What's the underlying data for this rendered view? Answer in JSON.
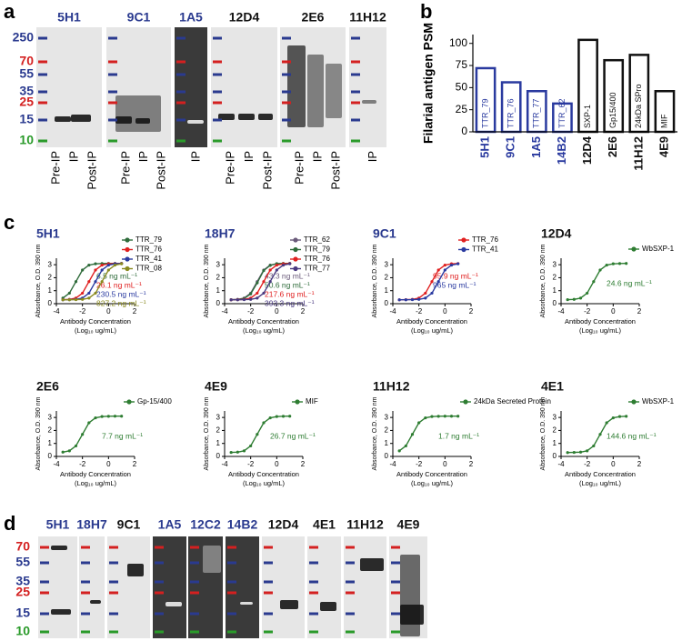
{
  "panel_labels": [
    "a",
    "b",
    "c",
    "d"
  ],
  "blot_a": {
    "markers": [
      {
        "label": "250",
        "color": "#2a3a8f"
      },
      {
        "label": "70",
        "color": "#d42020"
      },
      {
        "label": "55",
        "color": "#2a3a8f"
      },
      {
        "label": "35",
        "color": "#2a3a8f"
      },
      {
        "label": "25",
        "color": "#d42020"
      },
      {
        "label": "15",
        "color": "#2a3a8f"
      },
      {
        "label": "10",
        "color": "#2a9a2a"
      }
    ],
    "blots": [
      {
        "name": "5H1",
        "color": "#2a3a8f",
        "lanes": [
          "Pre-IP",
          "IP",
          "Post-IP"
        ]
      },
      {
        "name": "9C1",
        "color": "#2a3a8f",
        "lanes": [
          "Pre-IP",
          "IP",
          "Post-IP"
        ]
      },
      {
        "name": "1A5",
        "color": "#2a3a8f",
        "lanes": [
          "IP"
        ]
      },
      {
        "name": "12D4",
        "color": "#111111",
        "lanes": [
          "Pre-IP",
          "IP",
          "Post-IP"
        ]
      },
      {
        "name": "2E6",
        "color": "#111111",
        "lanes": [
          "Pre-IP",
          "IP",
          "Post-IP"
        ]
      },
      {
        "name": "11H12",
        "color": "#111111",
        "lanes": [
          "IP"
        ]
      }
    ]
  },
  "chart_data": [
    {
      "type": "bar",
      "y_label": "Filarial antigen PSM",
      "categories": [
        "5H1",
        "9C1",
        "1A5",
        "14B2",
        "12D4",
        "2E6",
        "11H12",
        "4E9"
      ],
      "values": [
        72,
        56,
        46,
        32,
        104,
        81,
        87,
        46
      ],
      "colors": [
        "#2a3a9f",
        "#2a3a9f",
        "#2a3a9f",
        "#2a3a9f",
        "#111111",
        "#111111",
        "#111111",
        "#111111"
      ],
      "bar_labels": [
        "TTR_79",
        "TTR_76",
        "TTR_77",
        "TTR_62",
        "SXP-1",
        "Gp15/400",
        "24kDa SPro",
        "MIF"
      ],
      "ylim": [
        0,
        110
      ],
      "yticks": [
        0,
        25,
        50,
        75,
        100
      ]
    },
    {
      "type": "line",
      "title": "5H1",
      "title_color": "#2a3a8f",
      "y_label": "Absorbance, O.D. 390 nm",
      "x_label": [
        "Antibody Concentration",
        "(Log₁₀ ug/mL)"
      ],
      "x": [
        -3.5,
        -3,
        -2.5,
        -2,
        -1.5,
        -1,
        -0.5,
        0,
        0.5,
        1
      ],
      "xlim": [
        -4,
        2
      ],
      "ylim": [
        0,
        3.5
      ],
      "xticks": [
        -4,
        -2,
        0,
        2
      ],
      "yticks": [
        0,
        1,
        2,
        3
      ],
      "series": [
        {
          "name": "TTR_79",
          "color": "#2e6b3a",
          "annotation": "6.5 ng mL⁻¹",
          "values": [
            0.43,
            0.81,
            1.7,
            2.59,
            2.97,
            3.07,
            3.09,
            3.1,
            3.1,
            3.1
          ]
        },
        {
          "name": "TTR_76",
          "color": "#e02020",
          "annotation": "26.1 ng mL⁻¹",
          "values": [
            0.31,
            0.33,
            0.43,
            0.81,
            1.7,
            2.59,
            2.97,
            3.07,
            3.09,
            3.1
          ]
        },
        {
          "name": "TTR_41",
          "color": "#2a3aa0",
          "annotation": "230.5 ng mL⁻¹",
          "values": [
            0.3,
            0.31,
            0.33,
            0.43,
            0.81,
            1.7,
            2.59,
            2.97,
            3.07,
            3.09
          ]
        },
        {
          "name": "TTR_08",
          "color": "#8a8a20",
          "annotation": "827.2 ng mL⁻¹",
          "values": [
            0.3,
            0.3,
            0.31,
            0.33,
            0.43,
            0.81,
            1.7,
            2.59,
            2.97,
            3.07
          ]
        }
      ]
    },
    {
      "type": "line",
      "title": "18H7",
      "title_color": "#2a3a8f",
      "y_label": "Absorbance, O.D. 390 nm",
      "x_label": [
        "Antibody Concentration",
        "(Log₁₀ ug/mL)"
      ],
      "x": [
        -3.5,
        -3,
        -2.5,
        -2,
        -1.5,
        -1,
        -0.5,
        0,
        0.5,
        1
      ],
      "xlim": [
        -4,
        2
      ],
      "ylim": [
        0,
        3.5
      ],
      "xticks": [
        -4,
        -2,
        0,
        2
      ],
      "yticks": [
        0,
        1,
        2,
        3
      ],
      "series": [
        {
          "name": "TTR_62",
          "color": "#6a5a7a",
          "annotation": "43.3 ng mL⁻¹",
          "values": [
            0.31,
            0.33,
            0.43,
            0.81,
            1.7,
            2.59,
            2.97,
            3.07,
            3.09,
            3.1
          ]
        },
        {
          "name": "TTR_79",
          "color": "#2e6b3a",
          "annotation": "50.6 ng mL⁻¹",
          "values": [
            0.3,
            0.32,
            0.4,
            0.75,
            1.6,
            2.55,
            2.95,
            3.08,
            3.1,
            3.1
          ]
        },
        {
          "name": "TTR_76",
          "color": "#e02020",
          "annotation": "217.6 ng mL⁻¹",
          "values": [
            0.3,
            0.31,
            0.33,
            0.43,
            0.81,
            1.7,
            2.59,
            2.97,
            3.07,
            3.09
          ]
        },
        {
          "name": "TTR_77",
          "color": "#4a3a80",
          "annotation": "393.3 ng mL⁻¹",
          "values": [
            0.3,
            0.3,
            0.31,
            0.33,
            0.43,
            0.81,
            1.7,
            2.59,
            2.97,
            3.07
          ]
        }
      ]
    },
    {
      "type": "line",
      "title": "9C1",
      "title_color": "#2a3a8f",
      "y_label": "Absorbance, O.D. 390 nm",
      "x_label": [
        "Antibody Concentration",
        "(Log₁₀ ug/mL)"
      ],
      "x": [
        -3.5,
        -3,
        -2.5,
        -2,
        -1.5,
        -1,
        -0.5,
        0,
        0.5,
        1
      ],
      "xlim": [
        -4,
        2
      ],
      "ylim": [
        0,
        3.5
      ],
      "xticks": [
        -4,
        -2,
        0,
        2
      ],
      "yticks": [
        0,
        1,
        2,
        3
      ],
      "series": [
        {
          "name": "TTR_76",
          "color": "#e02020",
          "annotation": "95.9 ng mL⁻¹",
          "values": [
            0.3,
            0.31,
            0.33,
            0.43,
            0.81,
            1.7,
            2.59,
            2.97,
            3.07,
            3.09
          ]
        },
        {
          "name": "TTR_41",
          "color": "#2a3aa0",
          "annotation": "965 ng mL⁻¹",
          "values": [
            0.3,
            0.3,
            0.31,
            0.33,
            0.43,
            0.81,
            1.7,
            2.59,
            2.97,
            3.07
          ]
        }
      ]
    },
    {
      "type": "line",
      "title": "12D4",
      "title_color": "#111111",
      "y_label": "Absorbance, O.D. 390 nm",
      "x_label": [
        "Antibody Concentration",
        "(Log₁₀ ug/mL)"
      ],
      "x": [
        -3.5,
        -3,
        -2.5,
        -2,
        -1.5,
        -1,
        -0.5,
        0,
        0.5,
        1
      ],
      "xlim": [
        -4,
        2
      ],
      "ylim": [
        0,
        3.5
      ],
      "xticks": [
        -4,
        -2,
        0,
        2
      ],
      "yticks": [
        0,
        1,
        2,
        3
      ],
      "series": [
        {
          "name": "WbSXP-1",
          "color": "#2e7d32",
          "annotation": "24.6 ng mL⁻¹",
          "values": [
            0.31,
            0.33,
            0.43,
            0.81,
            1.7,
            2.59,
            2.97,
            3.07,
            3.09,
            3.1
          ]
        }
      ]
    },
    {
      "type": "line",
      "title": "2E6",
      "title_color": "#111111",
      "y_label": "Absorbance, O.D. 390 nm",
      "x_label": [
        "Antibody Concentration",
        "(Log₁₀ ug/mL)"
      ],
      "x": [
        -3.5,
        -3,
        -2.5,
        -2,
        -1.5,
        -1,
        -0.5,
        0,
        0.5,
        1
      ],
      "xlim": [
        -4,
        2
      ],
      "ylim": [
        0,
        3.5
      ],
      "xticks": [
        -4,
        -2,
        0,
        2
      ],
      "yticks": [
        0,
        1,
        2,
        3
      ],
      "series": [
        {
          "name": "Gp-15/400",
          "color": "#2e7d32",
          "annotation": "7.7 ng mL⁻¹",
          "values": [
            0.33,
            0.43,
            0.81,
            1.7,
            2.59,
            2.97,
            3.07,
            3.09,
            3.1,
            3.1
          ]
        }
      ]
    },
    {
      "type": "line",
      "title": "4E9",
      "title_color": "#111111",
      "y_label": "Absorbance, O.D. 390 nm",
      "x_label": [
        "Antibody Concentration",
        "(Log₁₀ ug/mL)"
      ],
      "x": [
        -3.5,
        -3,
        -2.5,
        -2,
        -1.5,
        -1,
        -0.5,
        0,
        0.5,
        1
      ],
      "xlim": [
        -4,
        2
      ],
      "ylim": [
        0,
        3.5
      ],
      "xticks": [
        -4,
        -2,
        0,
        2
      ],
      "yticks": [
        0,
        1,
        2,
        3
      ],
      "series": [
        {
          "name": "MIF",
          "color": "#2e7d32",
          "annotation": "26.7 ng mL⁻¹",
          "values": [
            0.31,
            0.33,
            0.43,
            0.81,
            1.7,
            2.59,
            2.97,
            3.07,
            3.09,
            3.1
          ]
        }
      ]
    },
    {
      "type": "line",
      "title": "11H12",
      "title_color": "#111111",
      "y_label": "Absorbance, O.D. 390 nm",
      "x_label": [
        "Antibody Concentration",
        "(Log₁₀ ug/mL)"
      ],
      "x": [
        -3.5,
        -3,
        -2.5,
        -2,
        -1.5,
        -1,
        -0.5,
        0,
        0.5,
        1
      ],
      "xlim": [
        -4,
        2
      ],
      "ylim": [
        0,
        3.5
      ],
      "xticks": [
        -4,
        -2,
        0,
        2
      ],
      "yticks": [
        0,
        1,
        2,
        3
      ],
      "series": [
        {
          "name": "24kDa Secreted Protein",
          "color": "#2e7d32",
          "annotation": "1.7 ng mL⁻¹",
          "values": [
            0.43,
            0.81,
            1.7,
            2.59,
            2.97,
            3.07,
            3.09,
            3.1,
            3.1,
            3.1
          ]
        }
      ]
    },
    {
      "type": "line",
      "title": "4E1",
      "title_color": "#111111",
      "y_label": "Absorbance, O.D. 390 nm",
      "x_label": [
        "Antibody Concentration",
        "(Log₁₀ ug/mL)"
      ],
      "x": [
        -3.5,
        -3,
        -2.5,
        -2,
        -1.5,
        -1,
        -0.5,
        0,
        0.5,
        1
      ],
      "xlim": [
        -4,
        2
      ],
      "ylim": [
        0,
        3.5
      ],
      "xticks": [
        -4,
        -2,
        0,
        2
      ],
      "yticks": [
        0,
        1,
        2,
        3
      ],
      "series": [
        {
          "name": "WbSXP-1",
          "color": "#2e7d32",
          "annotation": "144.6 ng mL⁻¹",
          "values": [
            0.3,
            0.31,
            0.33,
            0.43,
            0.81,
            1.7,
            2.59,
            2.97,
            3.07,
            3.09
          ]
        }
      ]
    }
  ],
  "blot_d": {
    "markers": [
      {
        "label": "70",
        "color": "#d42020"
      },
      {
        "label": "55",
        "color": "#2a3a8f"
      },
      {
        "label": "35",
        "color": "#2a3a8f"
      },
      {
        "label": "25",
        "color": "#d42020"
      },
      {
        "label": "15",
        "color": "#2a3a8f"
      },
      {
        "label": "10",
        "color": "#2a9a2a"
      }
    ],
    "blots": [
      {
        "name": "5H1",
        "color": "#2a3a8f"
      },
      {
        "name": "18H7",
        "color": "#2a3a8f"
      },
      {
        "name": "9C1",
        "color": "#111111"
      },
      {
        "name": "1A5",
        "color": "#2a3a8f"
      },
      {
        "name": "12C2",
        "color": "#2a3a8f"
      },
      {
        "name": "14B2",
        "color": "#2a3a8f"
      },
      {
        "name": "12D4",
        "color": "#111111"
      },
      {
        "name": "4E1",
        "color": "#111111"
      },
      {
        "name": "11H12",
        "color": "#111111"
      },
      {
        "name": "4E9",
        "color": "#111111"
      }
    ]
  }
}
